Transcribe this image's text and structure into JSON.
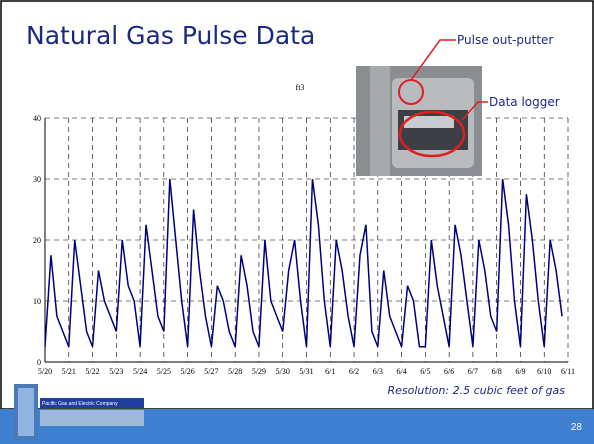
{
  "slide": {
    "title": "Natural Gas Pulse Data",
    "page_number": "28",
    "logo_text": "Pacific Gas and Electric Company"
  },
  "chart_data": {
    "type": "line",
    "ylabel": "ft3",
    "annotations": [
      "Pulse out-putter",
      "Data logger",
      "Resolution: 2.5 cubic feet of gas"
    ],
    "xlim": [
      0,
      22
    ],
    "ylim": [
      0,
      40
    ],
    "yticks": [
      0,
      10,
      20,
      30,
      40
    ],
    "grid": true,
    "xticks": [
      {
        "value": 0,
        "label": "5/20"
      },
      {
        "value": 1,
        "label": "5/21"
      },
      {
        "value": 2,
        "label": "5/22"
      },
      {
        "value": 3,
        "label": "5/23"
      },
      {
        "value": 4,
        "label": "5/24"
      },
      {
        "value": 5,
        "label": "5/25"
      },
      {
        "value": 6,
        "label": "5/26"
      },
      {
        "value": 7,
        "label": "5/27"
      },
      {
        "value": 8,
        "label": "5/28"
      },
      {
        "value": 9,
        "label": "5/29"
      },
      {
        "value": 10,
        "label": "5/30"
      },
      {
        "value": 11,
        "label": "5/31"
      },
      {
        "value": 12,
        "label": "6/1"
      },
      {
        "value": 13,
        "label": "6/2"
      },
      {
        "value": 14,
        "label": "6/3"
      },
      {
        "value": 15,
        "label": "6/4"
      },
      {
        "value": 16,
        "label": "6/5"
      },
      {
        "value": 17,
        "label": "6/6"
      },
      {
        "value": 18,
        "label": "6/7"
      },
      {
        "value": 19,
        "label": "6/8"
      },
      {
        "value": 20,
        "label": "6/9"
      },
      {
        "value": 21,
        "label": "6/10"
      },
      {
        "value": 22,
        "label": "6/11"
      }
    ],
    "series": [
      {
        "color": "#00007f",
        "x": [
          0,
          0.25,
          0.5,
          0.75,
          1,
          1.25,
          1.5,
          1.75,
          2,
          2.25,
          2.5,
          2.75,
          3,
          3.25,
          3.5,
          3.75,
          4,
          4.25,
          4.5,
          4.75,
          5,
          5.25,
          5.5,
          5.75,
          6,
          6.25,
          6.5,
          6.75,
          7,
          7.25,
          7.5,
          7.75,
          8,
          8.25,
          8.5,
          8.75,
          9,
          9.25,
          9.5,
          9.75,
          10,
          10.25,
          10.5,
          10.75,
          11,
          11.25,
          11.5,
          11.75,
          12,
          12.25,
          12.5,
          12.75,
          13,
          13.25,
          13.5,
          13.75,
          14,
          14.25,
          14.5,
          14.75,
          15,
          15.25,
          15.5,
          15.75,
          16,
          16.25,
          16.5,
          16.75,
          17,
          17.25,
          17.5,
          17.75,
          18,
          18.25,
          18.5,
          18.75,
          19,
          19.25,
          19.5,
          19.75,
          20,
          20.25,
          20.5,
          20.75,
          21,
          21.25,
          21.5,
          21.75
        ],
        "values": [
          2.5,
          17.5,
          7.5,
          5,
          2.5,
          20,
          12.5,
          5,
          2.5,
          15,
          10,
          7.5,
          5,
          20,
          12.5,
          10,
          2.5,
          22.5,
          15,
          7.5,
          5,
          30,
          20,
          10,
          2.5,
          25,
          15,
          7.5,
          2.5,
          12.5,
          10,
          5,
          2.5,
          17.5,
          12.5,
          5,
          2.5,
          20,
          10,
          7.5,
          5,
          15,
          20,
          10,
          2.5,
          30,
          22.5,
          10,
          2.5,
          20,
          15,
          7.5,
          2.5,
          17.5,
          22.5,
          5,
          2.5,
          15,
          7.5,
          5,
          2.5,
          12.5,
          10,
          2.5,
          2.5,
          20,
          12.5,
          7.5,
          2.5,
          22.5,
          17.5,
          10,
          2.5,
          20,
          15,
          7.5,
          5,
          30,
          22.5,
          10,
          2.5,
          27.5,
          20,
          10,
          2.5,
          20,
          15,
          7.5
        ]
      }
    ]
  }
}
